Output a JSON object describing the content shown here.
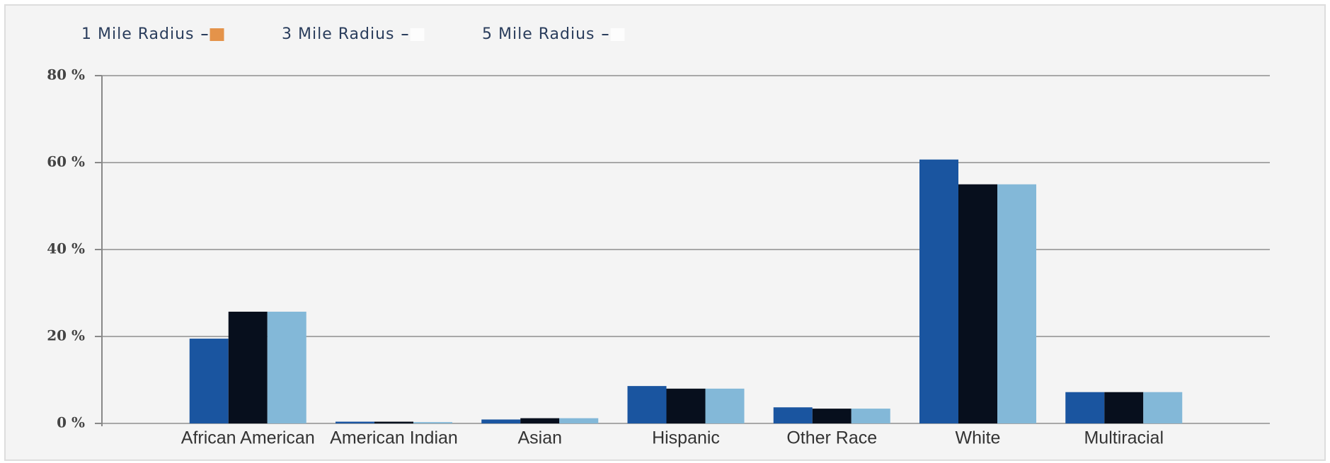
{
  "chart_data": {
    "type": "bar",
    "categories": [
      "African American",
      "American Indian",
      "Asian",
      "Hispanic",
      "Other Race",
      "White",
      "Multiracial"
    ],
    "series": [
      {
        "name": "1 Mile Radius",
        "color": "#1a55a0",
        "values": [
          19.5,
          0.4,
          0.9,
          8.6,
          3.7,
          60.7,
          7.2
        ]
      },
      {
        "name": "3 Mile Radius",
        "color": "#070f1d",
        "values": [
          25.7,
          0.4,
          1.2,
          8.0,
          3.4,
          55.0,
          7.2
        ]
      },
      {
        "name": "5 Mile Radius",
        "color": "#83b8d8",
        "values": [
          25.7,
          0.3,
          1.2,
          8.0,
          3.4,
          55.0,
          7.2
        ]
      }
    ],
    "ylim": [
      0,
      80
    ],
    "yticks": [
      {
        "value": 0,
        "label": "0 %"
      },
      {
        "value": 20,
        "label": "20 %"
      },
      {
        "value": 40,
        "label": "40 %"
      },
      {
        "value": 60,
        "label": "60 %"
      },
      {
        "value": 80,
        "label": "80 %"
      }
    ],
    "grid": true
  }
}
